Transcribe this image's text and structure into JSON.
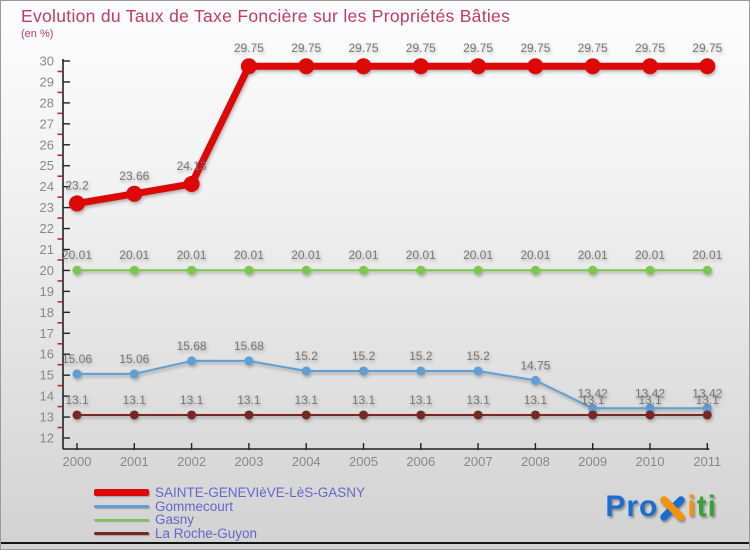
{
  "header": {
    "title": "Evolution du Taux de Taxe Foncière sur les Propriétés Bâties",
    "subtitle": "(en %)"
  },
  "chart_data": {
    "type": "line",
    "title": "Evolution du Taux de Taxe Foncière sur les Propriétés Bâties",
    "unit_label": "(en %)",
    "x": [
      2000,
      2001,
      2002,
      2003,
      2004,
      2005,
      2006,
      2007,
      2008,
      2009,
      2010,
      2011
    ],
    "ylim": [
      12,
      30
    ],
    "y_major_step": 1,
    "y_minor_step": 0.5,
    "grid": false,
    "legend_position": "bottom-left",
    "axis_color": "#222222",
    "minor_tick_color": "#cc2222",
    "tick_label_color": "#888888",
    "point_label_color": "#777777",
    "series": [
      {
        "name": "SAINTE-GENEVIèVE-LèS-GASNY",
        "color": "#dd0808",
        "line_width": 7,
        "dot_radius": 8,
        "values": [
          23.2,
          23.66,
          24.13,
          29.75,
          29.75,
          29.75,
          29.75,
          29.75,
          29.75,
          29.75,
          29.75,
          29.75
        ]
      },
      {
        "name": "Gommecourt",
        "color": "#5f9fd4",
        "line_width": 2,
        "dot_radius": 4.5,
        "values": [
          15.06,
          15.06,
          15.68,
          15.68,
          15.2,
          15.2,
          15.2,
          15.2,
          14.75,
          13.42,
          13.42,
          13.42
        ]
      },
      {
        "name": "Gasny",
        "color": "#7cc84e",
        "line_width": 2,
        "dot_radius": 4.5,
        "values": [
          20.01,
          20.01,
          20.01,
          20.01,
          20.01,
          20.01,
          20.01,
          20.01,
          20.01,
          20.01,
          20.01,
          20.01
        ]
      },
      {
        "name": "La Roche-Guyon",
        "color": "#772824",
        "line_width": 2,
        "dot_radius": 4.5,
        "values": [
          13.1,
          13.1,
          13.1,
          13.1,
          13.1,
          13.1,
          13.1,
          13.1,
          13.1,
          13.1,
          13.1,
          13.1
        ]
      }
    ]
  },
  "legend_text_color": "#6666cc",
  "logo": {
    "pro": "Pro",
    "i": "i",
    "ti": "ti",
    "blue": "#1b6ed0",
    "orange": "#f5920b",
    "green": "#3aa233"
  }
}
